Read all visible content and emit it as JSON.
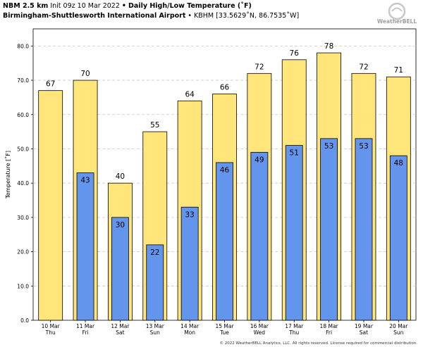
{
  "header": {
    "model": "NBM 2.5 km",
    "init": "Init 09z 10 Mar 2022",
    "bullet": "•",
    "title": "Daily High/Low Temperature (˚F)",
    "location": "Birmingham-Shuttlesworth International Airport",
    "station": "• KBHM [33.5629˚N, 86.7535˚W]"
  },
  "logo": {
    "text": "WeatherBELL"
  },
  "footer": {
    "copyright": "© 2022 WeatherBELL Analytics, LLC. All rights reserved. License required for commercial distribution."
  },
  "colors": {
    "high": "#ffe57a",
    "low": "#6495ed",
    "grid": "#c8c8c8",
    "bar_edge": "#000000"
  },
  "chart_data": {
    "type": "bar",
    "categories": [
      "10 Mar",
      "11 Mar",
      "12 Mar",
      "13 Mar",
      "14 Mar",
      "15 Mar",
      "16 Mar",
      "17 Mar",
      "18 Mar",
      "19 Mar",
      "20 Mar"
    ],
    "weekdays": [
      "Thu",
      "Fri",
      "Sat",
      "Sun",
      "Mon",
      "Tue",
      "Wed",
      "Thu",
      "Fri",
      "Sat",
      "Sun"
    ],
    "series": [
      {
        "key": "high",
        "values": [
          67,
          70,
          40,
          55,
          64,
          66,
          72,
          76,
          78,
          72,
          71
        ]
      },
      {
        "key": "low",
        "values": [
          null,
          43,
          30,
          22,
          33,
          46,
          49,
          51,
          53,
          53,
          48
        ]
      }
    ],
    "ylabel": "Temperature [˚F]",
    "ylim": [
      0,
      85
    ],
    "yticks": [
      "0.0",
      "10.0",
      "20.0",
      "30.0",
      "40.0",
      "50.0",
      "60.0",
      "70.0",
      "80.0"
    ],
    "grid": true
  }
}
